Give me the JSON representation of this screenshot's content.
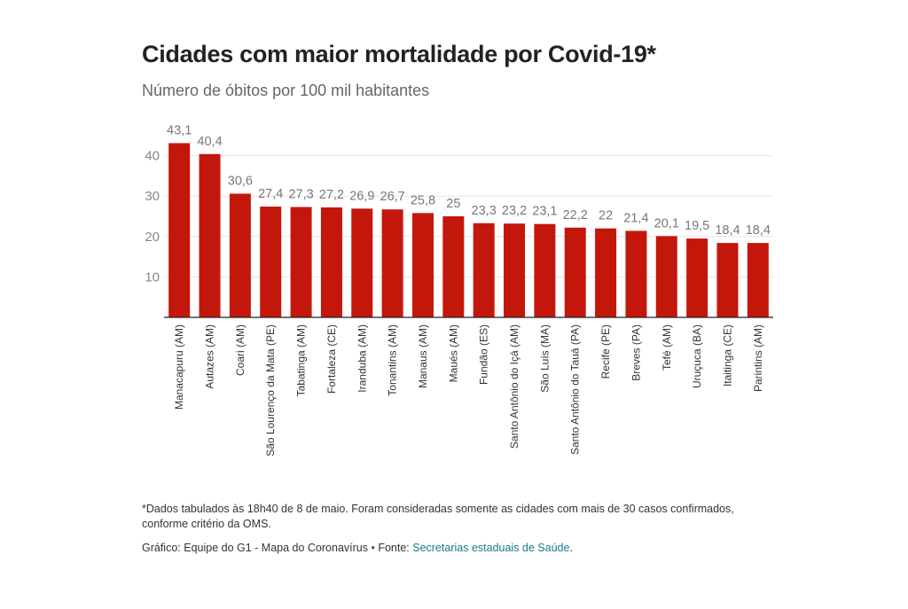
{
  "header": {
    "title": "Cidades com maior mortalidade por Covid-19*",
    "subtitle": "Número de óbitos por 100 mil habitantes"
  },
  "footer": {
    "note": "*Dados tabulados às 18h40 de 8 de maio. Foram consideradas somente as cidades com mais de 30 casos confirmados, conforme critério da OMS.",
    "credit_prefix": "Gráfico: Equipe do G1 - Mapa do Coronavírus",
    "credit_separator": " • ",
    "source_label": "Fonte: ",
    "source_link": "Secretarias estaduais de Saúde",
    "credit_end": "."
  },
  "colors": {
    "bar": "#c4170c",
    "grid": "#e6e6e6",
    "axis": "#222222",
    "tick_text": "#888888",
    "value_text": "#777777"
  },
  "chart_data": {
    "type": "bar",
    "title": "Cidades com maior mortalidade por Covid-19*",
    "subtitle": "Número de óbitos por 100 mil habitantes",
    "categories": [
      "Manacapuru (AM)",
      "Autazes (AM)",
      "Coari (AM)",
      "São Lourenço da Mata (PE)",
      "Tabatinga (AM)",
      "Fortaleza (CE)",
      "Iranduba (AM)",
      "Tonantins (AM)",
      "Manaus (AM)",
      "Maués (AM)",
      "Fundão (ES)",
      "Santo Antônio do Içá (AM)",
      "São Luís (MA)",
      "Santo Antônio do Tauá (PA)",
      "Recife (PE)",
      "Breves (PA)",
      "Tefé (AM)",
      "Uruçuca (BA)",
      "Itaitinga (CE)",
      "Parintins (AM)"
    ],
    "values": [
      43.1,
      40.4,
      30.6,
      27.4,
      27.3,
      27.2,
      26.9,
      26.7,
      25.8,
      25,
      23.3,
      23.2,
      23.1,
      22.2,
      22,
      21.4,
      20.1,
      19.5,
      18.4,
      18.4
    ],
    "value_labels": [
      "43,1",
      "40,4",
      "30,6",
      "27,4",
      "27,3",
      "27,2",
      "26,9",
      "26,7",
      "25,8",
      "25",
      "23,3",
      "23,2",
      "23,1",
      "22,2",
      "22",
      "21,4",
      "20,1",
      "19,5",
      "18,4",
      "18,4"
    ],
    "yticks": [
      10,
      20,
      30,
      40
    ],
    "ylim": [
      0,
      45
    ],
    "grid": true,
    "legend": "none"
  }
}
